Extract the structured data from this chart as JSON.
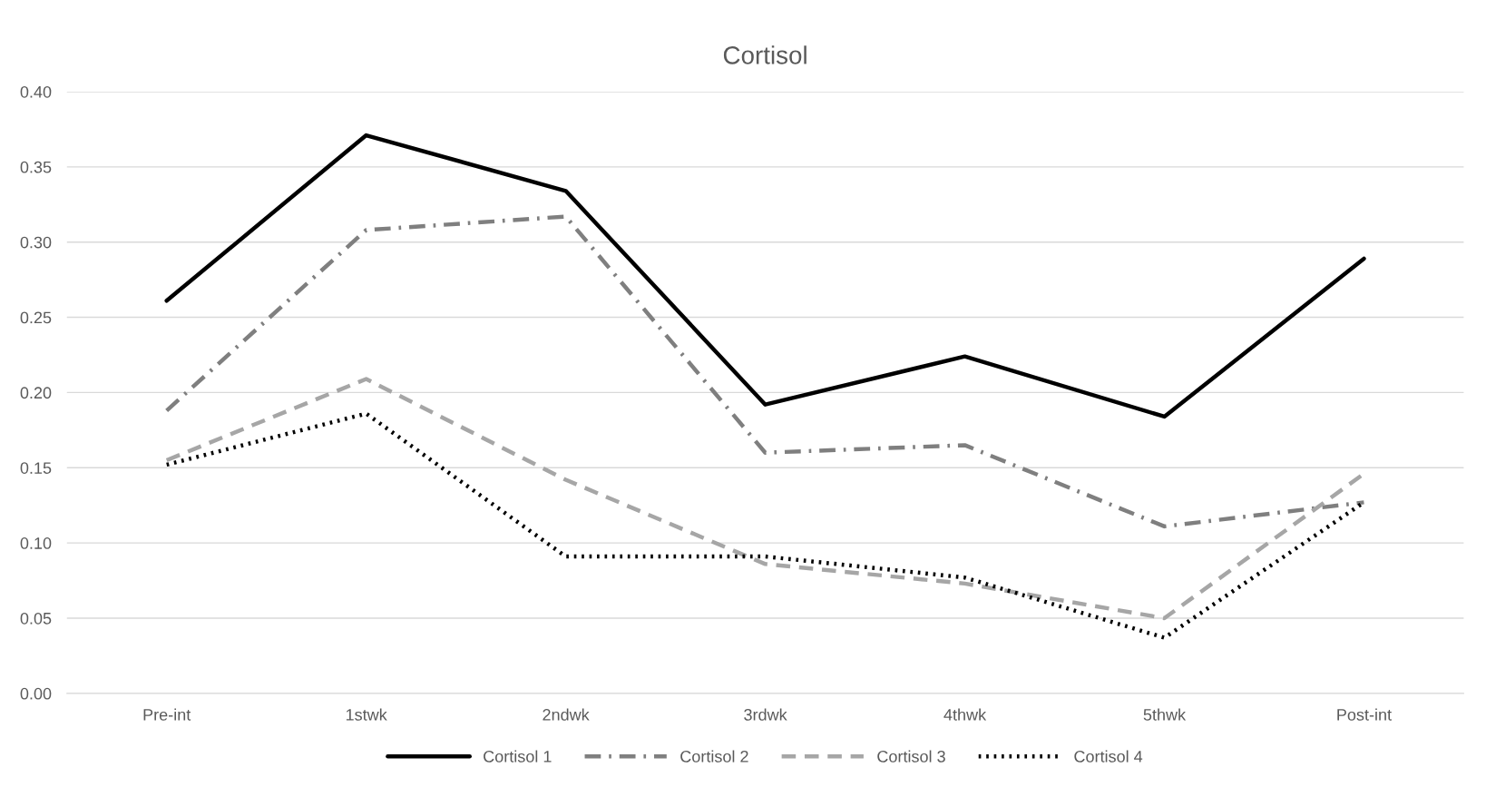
{
  "chart_data": {
    "type": "line",
    "title": "Cortisol",
    "categories": [
      "Pre-int",
      "1stwk",
      "2ndwk",
      "3rdwk",
      "4thwk",
      "5thwk",
      "Post-int"
    ],
    "series": [
      {
        "name": "Cortisol 1",
        "color": "#000000",
        "line_style": "solid",
        "values": [
          0.261,
          0.371,
          0.334,
          0.192,
          0.224,
          0.184,
          0.289
        ]
      },
      {
        "name": "Cortisol 2",
        "color": "#7f7f7f",
        "line_style": "dashdot",
        "values": [
          0.188,
          0.308,
          0.317,
          0.16,
          0.165,
          0.111,
          0.127
        ]
      },
      {
        "name": "Cortisol 3",
        "color": "#a6a6a6",
        "line_style": "dashed",
        "values": [
          0.155,
          0.209,
          0.142,
          0.086,
          0.073,
          0.05,
          0.146
        ]
      },
      {
        "name": "Cortisol 4",
        "color": "#000000",
        "line_style": "dotted",
        "values": [
          0.152,
          0.186,
          0.091,
          0.091,
          0.077,
          0.037,
          0.127
        ]
      }
    ],
    "ylim": [
      0,
      0.4
    ],
    "yticks": [
      {
        "value": 0,
        "label": "0.00"
      },
      {
        "value": 0.05,
        "label": "0.05"
      },
      {
        "value": 0.1,
        "label": "0.10"
      },
      {
        "value": 0.15,
        "label": "0.15"
      },
      {
        "value": 0.2,
        "label": "0.20"
      },
      {
        "value": 0.25,
        "label": "0.25"
      },
      {
        "value": 0.3,
        "label": "0.30"
      },
      {
        "value": 0.35,
        "label": "0.35"
      },
      {
        "value": 0.4,
        "label": "0.40"
      }
    ],
    "grid": "y",
    "legend": "bottom",
    "marker": "none"
  }
}
